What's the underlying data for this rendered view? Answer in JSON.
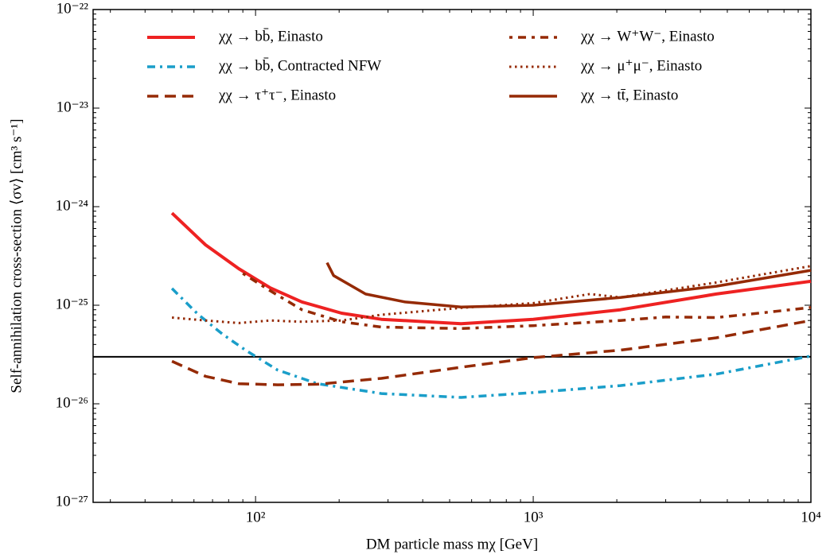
{
  "chart_data": {
    "type": "line",
    "xlabel": "DM particle mass mχ [GeV]",
    "ylabel": "Self-annihilation cross-section ⟨σv⟩ [cm³ s⁻¹]",
    "xscale": "log",
    "yscale": "log",
    "xlim": [
      26,
      10000
    ],
    "ylim": [
      1e-27,
      1e-22
    ],
    "xticks": [
      {
        "value": 100,
        "label": "10²"
      },
      {
        "value": 1000,
        "label": "10³"
      },
      {
        "value": 10000,
        "label": "10⁴"
      }
    ],
    "yticks": [
      {
        "value": 1e-27,
        "label": "10⁻²⁷"
      },
      {
        "value": 1e-26,
        "label": "10⁻²⁶"
      },
      {
        "value": 1e-25,
        "label": "10⁻²⁵"
      },
      {
        "value": 1e-24,
        "label": "10⁻²⁴"
      },
      {
        "value": 1e-23,
        "label": "10⁻²³"
      },
      {
        "value": 1e-22,
        "label": "10⁻²²"
      }
    ],
    "reference_line": 3e-26,
    "series": [
      {
        "name": "χχ → bb̄, Einasto",
        "color": "#ee2222",
        "linestyle": "solid",
        "width": 4,
        "x": [
          50,
          66,
          87,
          113,
          147,
          204,
          284,
          550,
          1000,
          2060,
          4560,
          10000
        ],
        "values": [
          8.6e-25,
          4.1e-25,
          2.35e-25,
          1.5e-25,
          1.08e-25,
          8.3e-26,
          7.2e-26,
          6.5e-26,
          7.2e-26,
          9e-26,
          1.3e-25,
          1.75e-25
        ]
      },
      {
        "name": "χχ → bb̄, Contracted NFW",
        "color": "#1a9ec9",
        "linestyle": "dashdot",
        "width": 3.5,
        "x": [
          50,
          62,
          76,
          92,
          120,
          167,
          284,
          550,
          1000,
          2060,
          4560,
          10000
        ],
        "values": [
          1.48e-25,
          8.1e-26,
          5.1e-26,
          3.5e-26,
          2.2e-26,
          1.6e-26,
          1.27e-26,
          1.16e-26,
          1.3e-26,
          1.53e-26,
          2e-26,
          3.05e-26
        ]
      },
      {
        "name": "χχ → τ⁺τ⁻, Einasto",
        "color": "#952a05",
        "linestyle": "dashed",
        "width": 3.5,
        "x": [
          50,
          66,
          87,
          120,
          167,
          284,
          550,
          1000,
          2060,
          4560,
          10000
        ],
        "values": [
          2.7e-26,
          1.9e-26,
          1.6e-26,
          1.56e-26,
          1.58e-26,
          1.81e-26,
          2.35e-26,
          2.94e-26,
          3.5e-26,
          4.67e-26,
          7e-26
        ]
      },
      {
        "name": "χχ → W⁺W⁻, Einasto",
        "color": "#952a05",
        "linestyle": "wdashdot",
        "width": 3.5,
        "x": [
          90,
          113,
          147,
          204,
          284,
          550,
          1000,
          2060,
          3000,
          4560,
          7000,
          10000
        ],
        "values": [
          2.1e-25,
          1.4e-25,
          9e-26,
          6.8e-26,
          6e-26,
          5.8e-26,
          6.2e-26,
          7e-26,
          7.6e-26,
          7.5e-26,
          8.5e-26,
          9.5e-26
        ]
      },
      {
        "name": "χχ → μ⁺μ⁻, Einasto",
        "color": "#952a05",
        "linestyle": "dotted",
        "width": 3,
        "x": [
          50,
          66,
          87,
          113,
          147,
          204,
          284,
          550,
          1000,
          1600,
          2060,
          4560,
          10000
        ],
        "values": [
          7.5e-26,
          7e-26,
          6.6e-26,
          7e-26,
          6.8e-26,
          7e-26,
          8e-26,
          9.4e-26,
          1.05e-25,
          1.3e-25,
          1.2e-25,
          1.7e-25,
          2.5e-25
        ]
      },
      {
        "name": "χχ → tt̄, Einasto",
        "color": "#952a05",
        "linestyle": "solid",
        "width": 3.5,
        "x": [
          181,
          191,
          249,
          346,
          550,
          1000,
          2060,
          4560,
          10000
        ],
        "values": [
          2.7e-25,
          2e-25,
          1.3e-25,
          1.08e-25,
          9.6e-26,
          1e-25,
          1.2e-25,
          1.56e-25,
          2.26e-25
        ]
      }
    ]
  }
}
